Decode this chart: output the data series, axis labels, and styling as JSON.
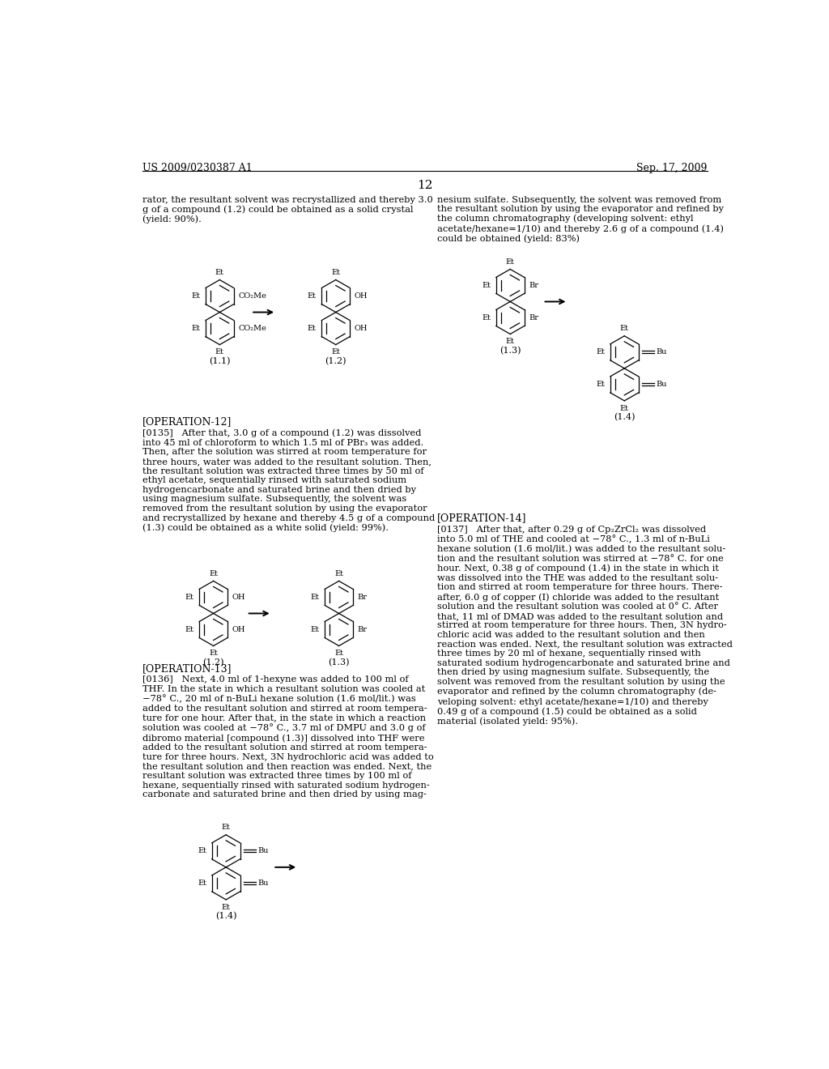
{
  "bg_color": "#ffffff",
  "header_left": "US 2009/0230387 A1",
  "header_right": "Sep. 17, 2009",
  "page_number": "12",
  "col1_text1": "rator, the resultant solvent was recrystallized and thereby 3.0\ng of a compound (1.2) could be obtained as a solid crystal\n(yield: 90%).",
  "col2_text1": "nesium sulfate. Subsequently, the solvent was removed from\nthe resultant solution by using the evaporator and refined by\nthe column chromatography (developing solvent: ethyl\nacetate/hexane=1/10) and thereby 2.6 g of a compound (1.4)\ncould be obtained (yield: 83%)",
  "operation12_label": "[OPERATION-12]",
  "para0135": "[0135]   After that, 3.0 g of a compound (1.2) was dissolved\ninto 45 ml of chloroform to which 1.5 ml of PBr₃ was added.\nThen, after the solution was stirred at room temperature for\nthree hours, water was added to the resultant solution. Then,\nthe resultant solution was extracted three times by 50 ml of\nethyl acetate, sequentially rinsed with saturated sodium\nhydrogencarbonate and saturated brine and then dried by\nusing magnesium sulfate. Subsequently, the solvent was\nremoved from the resultant solution by using the evaporator\nand recrystallized by hexane and thereby 4.5 g of a compound\n(1.3) could be obtained as a white solid (yield: 99%).",
  "operation13_label": "[OPERATION-13]",
  "para0136": "[0136]   Next, 4.0 ml of 1-hexyne was added to 100 ml of\nTHF. In the state in which a resultant solution was cooled at\n−78° C., 20 ml of n-BuLi hexane solution (1.6 mol/lit.) was\nadded to the resultant solution and stirred at room tempera-\nture for one hour. After that, in the state in which a reaction\nsolution was cooled at −78° C., 3.7 ml of DMPU and 3.0 g of\ndibromo material [compound (1.3)] dissolved into THF were\nadded to the resultant solution and stirred at room tempera-\nture for three hours. Next, 3N hydrochloric acid was added to\nthe resultant solution and then reaction was ended. Next, the\nresultant solution was extracted three times by 100 ml of\nhexane, sequentially rinsed with saturated sodium hydrogen-\ncarbonate and saturated brine and then dried by using mag-",
  "operation14_label": "[OPERATION-14]",
  "para0137": "[0137]   After that, after 0.29 g of Cp₂ZrCl₂ was dissolved\ninto 5.0 ml of THE and cooled at −78° C., 1.3 ml of n-BuLi\nhexane solution (1.6 mol/lit.) was added to the resultant solu-\ntion and the resultant solution was stirred at −78° C. for one\nhour. Next, 0.38 g of compound (1.4) in the state in which it\nwas dissolved into the THE was added to the resultant solu-\ntion and stirred at room temperature for three hours. There-\nafter, 6.0 g of copper (I) chloride was added to the resultant\nsolution and the resultant solution was cooled at 0° C. After\nthat, 11 ml of DMAD was added to the resultant solution and\nstirred at room temperature for three hours. Then, 3N hydro-\nchloric acid was added to the resultant solution and then\nreaction was ended. Next, the resultant solution was extracted\nthree times by 20 ml of hexane, sequentially rinsed with\nsaturated sodium hydrogencarbonate and saturated brine and\nthen dried by using magnesium sulfate. Subsequently, the\nsolvent was removed from the resultant solution by using the\nevaporator and refined by the column chromatography (de-\nveloping solvent: ethyl acetate/hexane=1/10) and thereby\n0.49 g of a compound (1.5) could be obtained as a solid\nmaterial (isolated yield: 95%)."
}
